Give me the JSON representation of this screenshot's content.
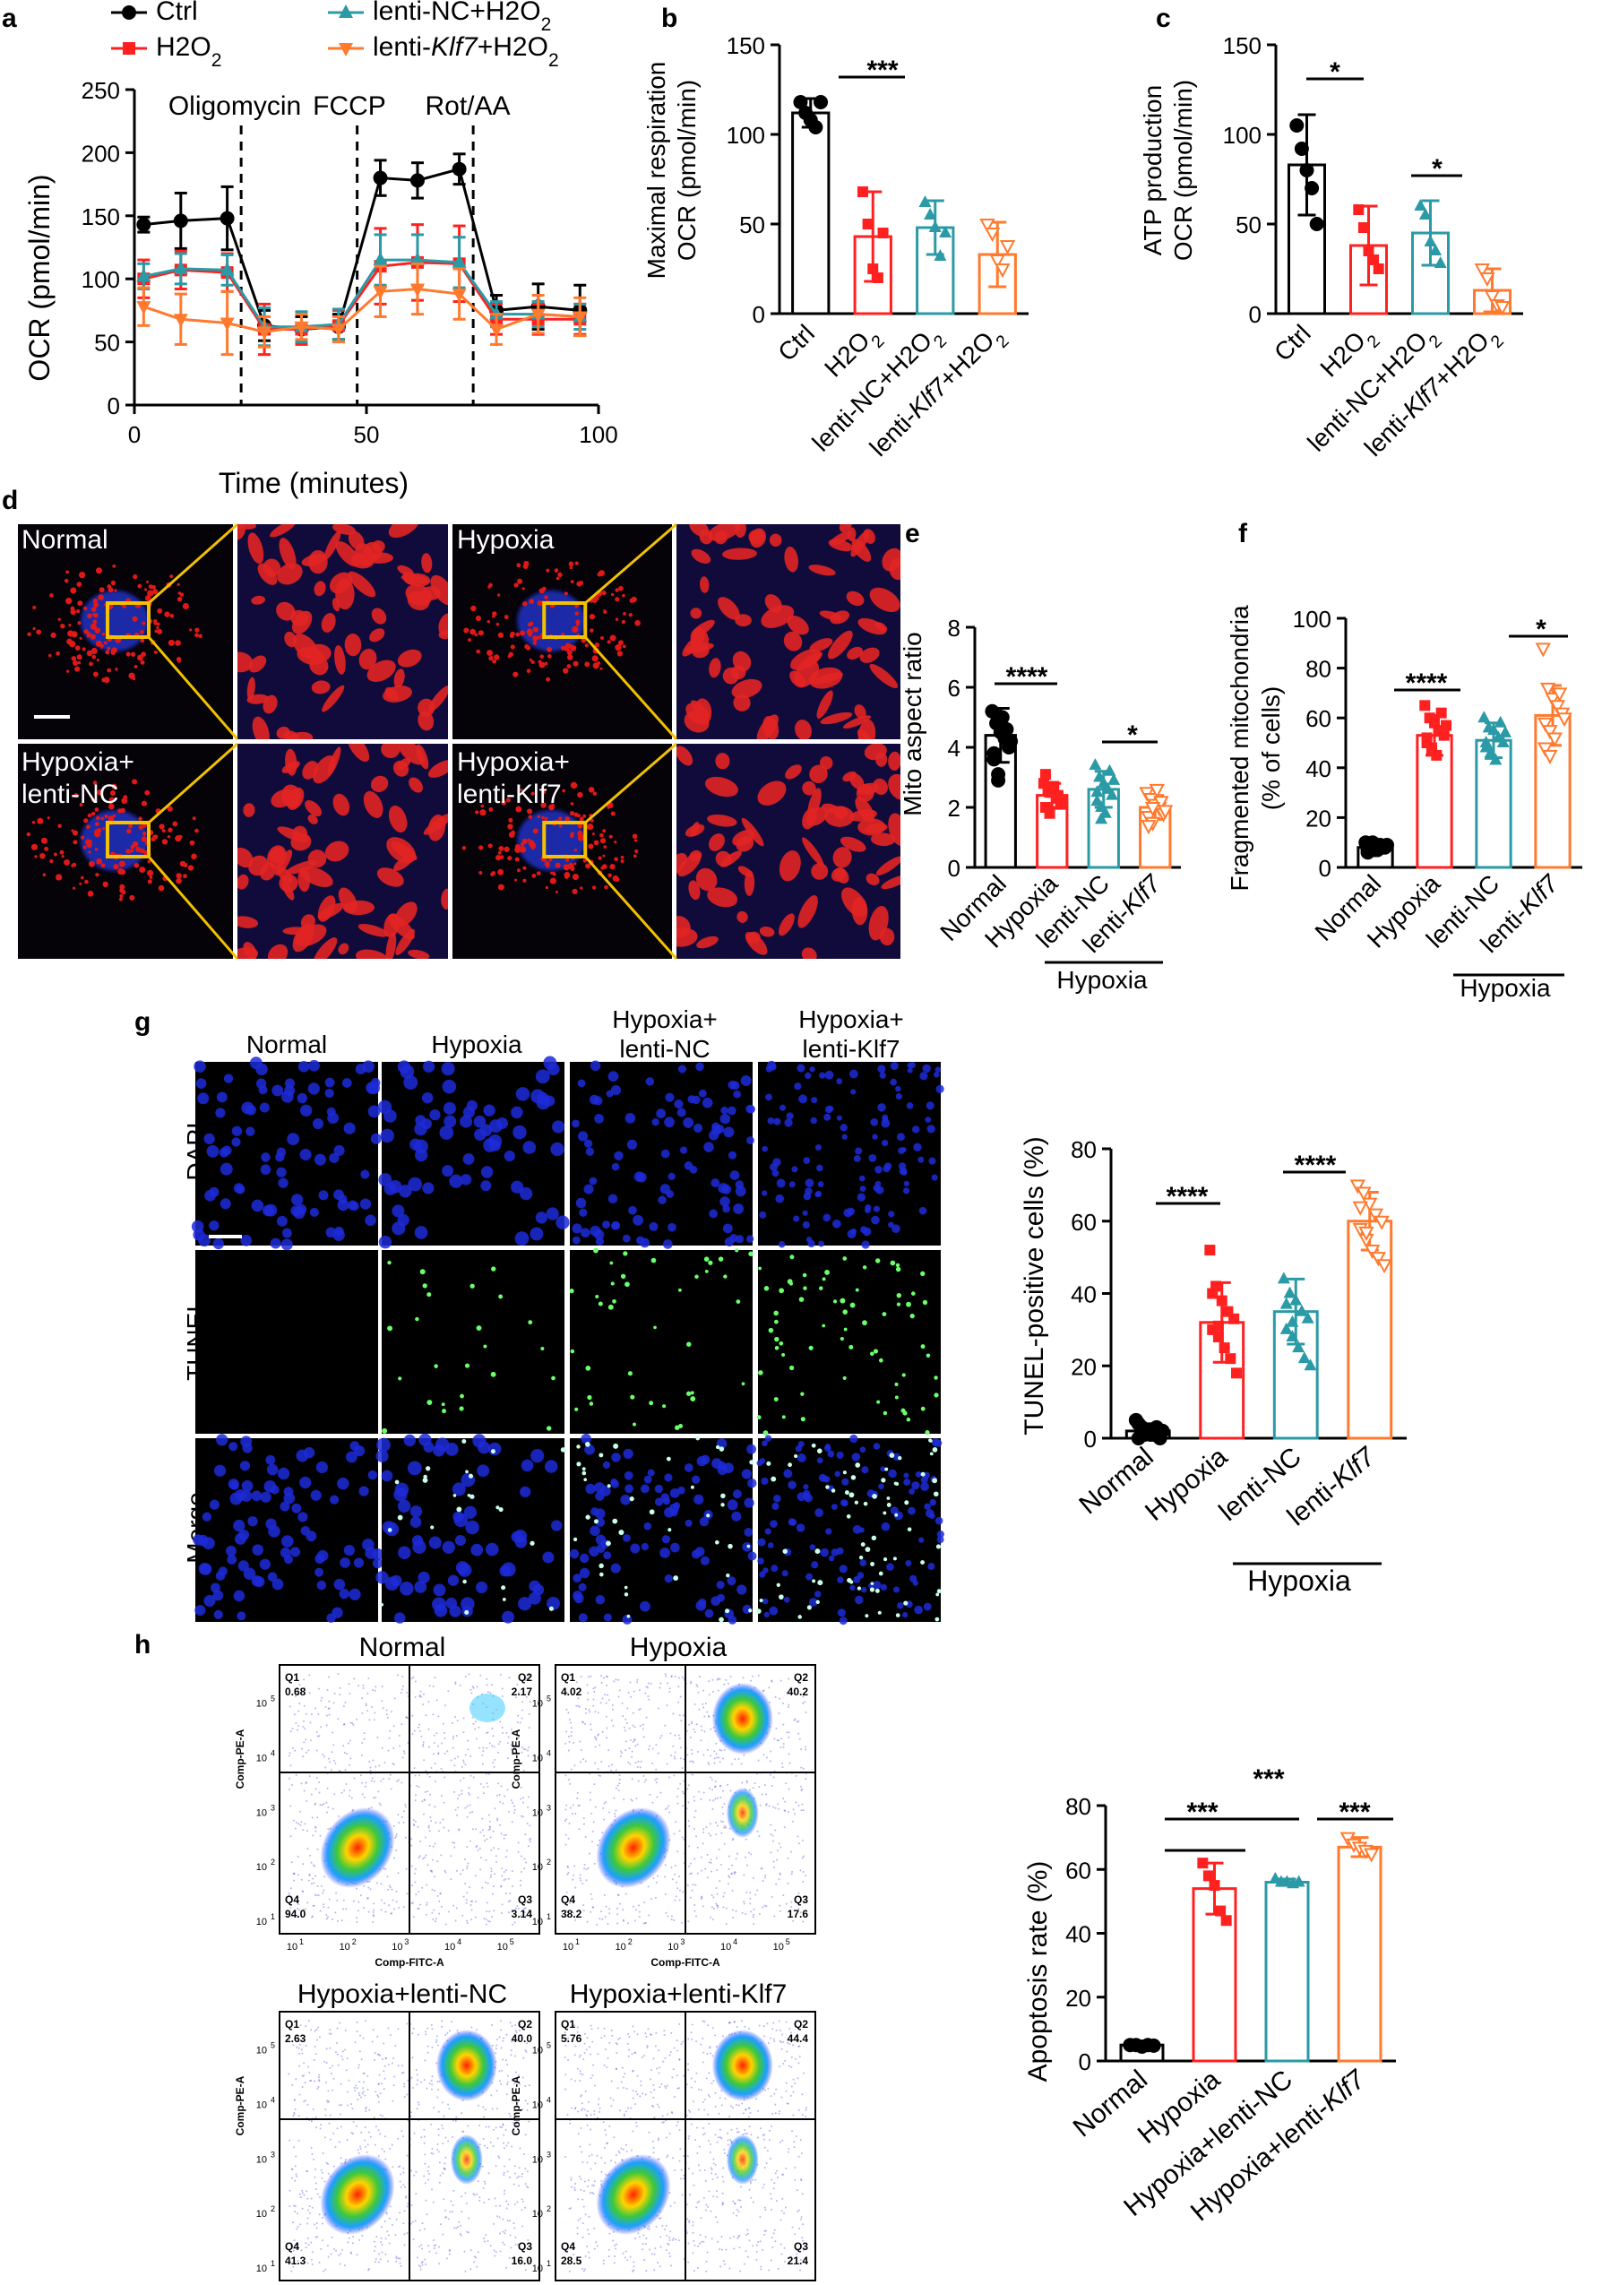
{
  "panels": [
    "a",
    "b",
    "c",
    "d",
    "e",
    "f",
    "g",
    "h"
  ],
  "colors": {
    "ctrl": "#000000",
    "h2o2": "#ff2020",
    "nc": "#2a9aa6",
    "klf7": "#ff7a2e"
  },
  "a": {
    "legend": [
      "Ctrl",
      "H2O2",
      "lenti-NC+H2O2",
      "lenti-Klf7+H2O2"
    ],
    "events": [
      "Oligomycin",
      "FCCP",
      "Rot/AA"
    ],
    "xlabel": "Time (minutes)",
    "ylabel": "OCR (pmol/min)",
    "xticks": [
      "0",
      "50",
      "100"
    ],
    "yticks": [
      "0",
      "50",
      "100",
      "150",
      "200",
      "250"
    ]
  },
  "b": {
    "ylabel1": "Maximal respiration",
    "ylabel2": "OCR (pmol/min)",
    "yticks": [
      "0",
      "50",
      "100",
      "150"
    ],
    "sig": "***"
  },
  "c": {
    "ylabel1": "ATP production",
    "ylabel2": "OCR (pmol/min)",
    "yticks": [
      "0",
      "50",
      "100",
      "150"
    ],
    "sig1": "*",
    "sig2": "*"
  },
  "bc_categories": [
    "Ctrl",
    "H2O2",
    "lenti-NC+H2O2",
    "lenti-Klf7+H2O2"
  ],
  "d": {
    "labels": [
      "Normal",
      "Hypoxia",
      "Hypoxia+",
      "lenti-NC",
      "Hypoxia+",
      "lenti-Klf7"
    ]
  },
  "e": {
    "ylabel": "Mito aspect ratio",
    "yticks": [
      "0",
      "2",
      "4",
      "6",
      "8"
    ],
    "sig1": "****",
    "sig2": "*"
  },
  "f": {
    "ylabel1": "Fragmented mitochondria",
    "ylabel2": "(% of cells)",
    "yticks": [
      "0",
      "20",
      "40",
      "60",
      "80",
      "100"
    ],
    "sig1": "****",
    "sig2": "*"
  },
  "ef_categories": [
    "Normal",
    "Hypoxia",
    "lenti-NC",
    "lenti-Klf7"
  ],
  "hypoxia_label": "Hypoxia",
  "g": {
    "cols": [
      "Normal",
      "Hypoxia",
      "Hypoxia+",
      "lenti-NC",
      "Hypoxia+",
      "lenti-Klf7"
    ],
    "rows": [
      "DAPI",
      "TUNEL",
      "Merge"
    ],
    "ylabel": "TUNEL-positive cells (%)",
    "yticks": [
      "0",
      "20",
      "40",
      "60",
      "80"
    ],
    "sig1": "****",
    "sig2": "****"
  },
  "h": {
    "titles": [
      "Normal",
      "Hypoxia",
      "Hypoxia+lenti-NC",
      "Hypoxia+lenti-Klf7"
    ],
    "quad_values": [
      [
        "0.68",
        "2.17",
        "94.0",
        "3.14"
      ],
      [
        "4.02",
        "40.2",
        "38.2",
        "17.6"
      ],
      [
        "2.63",
        "40.0",
        "41.3",
        "16.0"
      ],
      [
        "5.76",
        "44.4",
        "28.5",
        "21.4"
      ]
    ],
    "quad_labels": [
      "Q1",
      "Q2",
      "Q4",
      "Q3"
    ],
    "flow_x": "Comp-FITC-A",
    "flow_y": "Comp-PE-A",
    "ylabel": "Apoptosis rate (%)",
    "yticks": [
      "0",
      "20",
      "40",
      "60",
      "80"
    ],
    "categories": [
      "Normal",
      "Hypoxia",
      "Hypoxia+lenti-NC",
      "Hypoxia+lenti-Klf7"
    ],
    "sig": [
      "***",
      "***",
      "***"
    ]
  },
  "chart_data": [
    {
      "type": "line",
      "id": "a",
      "x": [
        2,
        10,
        20,
        28,
        36,
        44,
        53,
        61,
        70,
        78,
        87,
        96
      ],
      "series": [
        {
          "name": "Ctrl",
          "values": [
            143,
            146,
            148,
            63,
            60,
            62,
            180,
            178,
            187,
            75,
            78,
            75
          ]
        },
        {
          "name": "H2O2",
          "values": [
            100,
            107,
            105,
            60,
            60,
            63,
            110,
            113,
            112,
            68,
            68,
            68
          ]
        },
        {
          "name": "lenti-NC+H2O2",
          "values": [
            102,
            108,
            107,
            62,
            62,
            64,
            115,
            115,
            113,
            72,
            72,
            70
          ]
        },
        {
          "name": "lenti-Klf7+H2O2",
          "values": [
            78,
            68,
            65,
            58,
            62,
            60,
            90,
            92,
            88,
            60,
            72,
            70
          ]
        }
      ],
      "xlim": [
        0,
        100
      ],
      "ylim": [
        0,
        250
      ]
    },
    {
      "type": "bar",
      "id": "b",
      "categories": [
        "Ctrl",
        "H2O2",
        "lenti-NC+H2O2",
        "lenti-Klf7+H2O2"
      ],
      "values": [
        112,
        43,
        48,
        33
      ],
      "ylim": [
        0,
        150
      ]
    },
    {
      "type": "bar",
      "id": "c",
      "categories": [
        "Ctrl",
        "H2O2",
        "lenti-NC+H2O2",
        "lenti-Klf7+H2O2"
      ],
      "values": [
        83,
        38,
        45,
        13
      ],
      "ylim": [
        0,
        150
      ]
    },
    {
      "type": "bar",
      "id": "e",
      "categories": [
        "Normal",
        "Hypoxia",
        "lenti-NC",
        "lenti-Klf7"
      ],
      "values": [
        4.4,
        2.4,
        2.6,
        2.0
      ],
      "ylim": [
        0,
        8
      ]
    },
    {
      "type": "bar",
      "id": "f",
      "categories": [
        "Normal",
        "Hypoxia",
        "lenti-NC",
        "lenti-Klf7"
      ],
      "values": [
        8,
        53,
        51,
        61
      ],
      "ylim": [
        0,
        100
      ]
    },
    {
      "type": "bar",
      "id": "g",
      "categories": [
        "Normal",
        "Hypoxia",
        "lenti-NC",
        "lenti-Klf7"
      ],
      "values": [
        2,
        32,
        35,
        60
      ],
      "ylim": [
        0,
        80
      ]
    },
    {
      "type": "bar",
      "id": "h",
      "categories": [
        "Normal",
        "Hypoxia",
        "Hypoxia+lenti-NC",
        "Hypoxia+lenti-Klf7"
      ],
      "values": [
        5,
        54,
        56,
        67
      ],
      "ylim": [
        0,
        80
      ]
    }
  ]
}
